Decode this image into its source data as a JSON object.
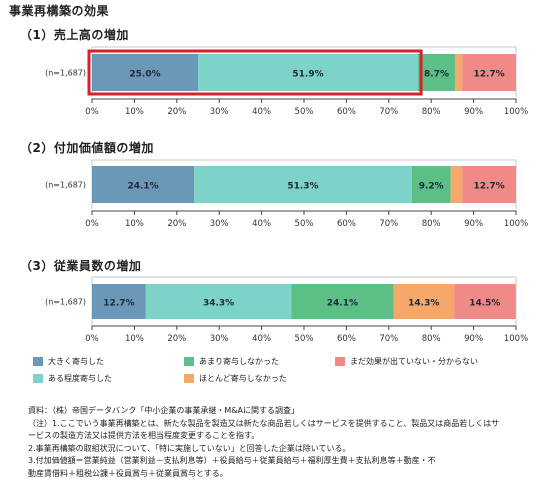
{
  "title": "事業再構築の効果",
  "colors": {
    "s1": "#6b97b8",
    "s2": "#7dd3c7",
    "s3": "#5cbf86",
    "s4": "#f5a86a",
    "s5": "#f08a87",
    "highlight": "#d9212b"
  },
  "x_ticks": [
    "0%",
    "10%",
    "20%",
    "30%",
    "40%",
    "50%",
    "60%",
    "70%",
    "80%",
    "90%",
    "100%"
  ],
  "chart_data": [
    {
      "type": "bar",
      "orientation": "horizontal-stacked",
      "title": "（1）売上高の増加",
      "n_label": "(n=1,687)",
      "xlim": [
        0,
        100
      ],
      "series": [
        {
          "name": "大きく寄与した",
          "value": 25.0,
          "label": "25.0%"
        },
        {
          "name": "ある程度寄与した",
          "value": 51.9,
          "label": "51.9%"
        },
        {
          "name": "あまり寄与しなかった",
          "value": 8.7,
          "label": "8.7%"
        },
        {
          "name": "ほとんど寄与しなかった",
          "value": 1.7,
          "label": ""
        },
        {
          "name": "まだ効果が出ていない・分からない",
          "value": 12.7,
          "label": "12.7%"
        }
      ],
      "highlight_segments": 2
    },
    {
      "type": "bar",
      "orientation": "horizontal-stacked",
      "title": "（2）付加価値額の増加",
      "n_label": "(n=1,687)",
      "xlim": [
        0,
        100
      ],
      "series": [
        {
          "name": "大きく寄与した",
          "value": 24.1,
          "label": "24.1%"
        },
        {
          "name": "ある程度寄与した",
          "value": 51.3,
          "label": "51.3%"
        },
        {
          "name": "あまり寄与しなかった",
          "value": 9.2,
          "label": "9.2%"
        },
        {
          "name": "ほとんど寄与しなかった",
          "value": 2.7,
          "label": ""
        },
        {
          "name": "まだ効果が出ていない・分からない",
          "value": 12.7,
          "label": "12.7%"
        }
      ],
      "highlight_segments": 0
    },
    {
      "type": "bar",
      "orientation": "horizontal-stacked",
      "title": "（3）従業員数の増加",
      "n_label": "(n=1,687)",
      "xlim": [
        0,
        100
      ],
      "series": [
        {
          "name": "大きく寄与した",
          "value": 12.7,
          "label": "12.7%"
        },
        {
          "name": "ある程度寄与した",
          "value": 34.3,
          "label": "34.3%"
        },
        {
          "name": "あまり寄与しなかった",
          "value": 24.1,
          "label": "24.1%"
        },
        {
          "name": "ほとんど寄与しなかった",
          "value": 14.3,
          "label": "14.3%"
        },
        {
          "name": "まだ効果が出ていない・分からない",
          "value": 14.5,
          "label": "14.5%"
        }
      ],
      "highlight_segments": 0
    }
  ],
  "legend": [
    {
      "label": "大きく寄与した",
      "color": "#6b97b8"
    },
    {
      "label": "あまり寄与しなかった",
      "color": "#5cbf86"
    },
    {
      "label": "まだ効果が出ていない・分からない",
      "color": "#f08a87"
    },
    {
      "label": "ある程度寄与した",
      "color": "#7dd3c7"
    },
    {
      "label": "ほとんど寄与しなかった",
      "color": "#f5a86a"
    }
  ],
  "notes": [
    "資料：（株）帝国データバンク「中小企業の事業承継・M&Aに関する調査」",
    "（注）1.ここでいう事業再構築とは、新たな製品を製造又は新たな商品若しくはサービスを提供すること、製品又は商品若しくはサ",
    "ービスの製造方法又は提供方法を相当程度変更することを指す。",
    "2.事業再構築の取組状況について、「特に実施していない」と回答した企業は除いている。",
    "3.付加価値額＝営業純益（営業利益－支払利息等）＋役員給与＋従業員給与＋福利厚生費＋支払利息等＋動産・不",
    "動産賃借料＋租税公課＋役員賞与＋従業員賞与とする。"
  ]
}
